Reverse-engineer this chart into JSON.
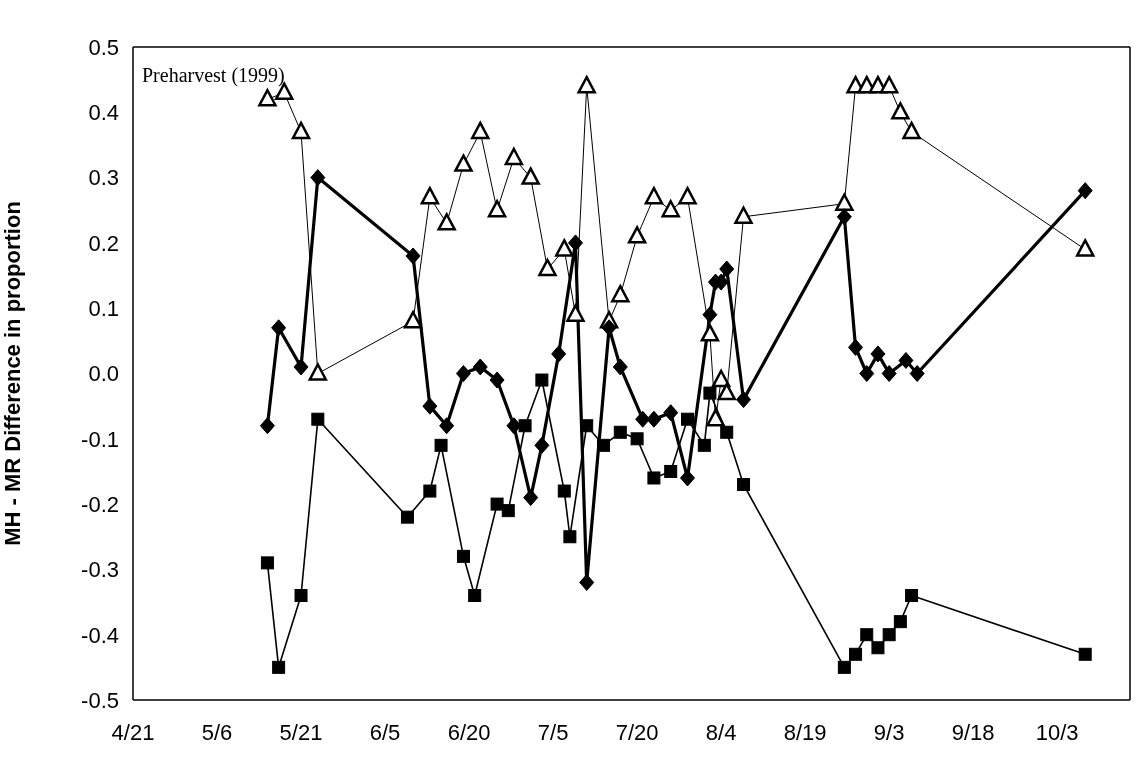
{
  "chart_data": {
    "type": "line",
    "ylabel": "MH - MR Difference in proportion",
    "annotations": [
      "Preharvest (1999)"
    ],
    "xlim": [
      "--04-21",
      "--10-16"
    ],
    "xticks": [
      {
        "value": "--04-21",
        "label": "4/21"
      },
      {
        "value": "--05-06",
        "label": "5/6"
      },
      {
        "value": "--05-21",
        "label": "5/21"
      },
      {
        "value": "--06-05",
        "label": "6/5"
      },
      {
        "value": "--06-20",
        "label": "6/20"
      },
      {
        "value": "--07-05",
        "label": "7/5"
      },
      {
        "value": "--07-20",
        "label": "7/20"
      },
      {
        "value": "--08-04",
        "label": "8/4"
      },
      {
        "value": "--08-19",
        "label": "8/19"
      },
      {
        "value": "--09-03",
        "label": "9/3"
      },
      {
        "value": "--09-18",
        "label": "9/18"
      },
      {
        "value": "--10-03",
        "label": "10/3"
      }
    ],
    "ylim": [
      -0.5,
      0.5
    ],
    "yticks": [
      {
        "value": -0.5,
        "label": "-0.5"
      },
      {
        "value": -0.4,
        "label": "-0.4"
      },
      {
        "value": -0.3,
        "label": "-0.3"
      },
      {
        "value": -0.2,
        "label": "-0.2"
      },
      {
        "value": -0.1,
        "label": "-0.1"
      },
      {
        "value": 0,
        "label": "0.0"
      },
      {
        "value": 0.1,
        "label": "0.1"
      },
      {
        "value": 0.2,
        "label": "0.2"
      },
      {
        "value": 0.3,
        "label": "0.3"
      },
      {
        "value": 0.4,
        "label": "0.4"
      },
      {
        "value": 0.5,
        "label": "0.5"
      }
    ],
    "series": [
      {
        "color": "#000000",
        "marker": "diamond",
        "x": [
          "--05-15",
          "--05-17",
          "--05-21",
          "--05-24",
          "--06-10",
          "--06-13",
          "--06-16",
          "--06-19",
          "--06-22",
          "--06-25",
          "--06-28",
          "--07-01",
          "--07-03",
          "--07-06",
          "--07-09",
          "--07-11",
          "--07-15",
          "--07-17",
          "--07-21",
          "--07-23",
          "--07-26",
          "--07-29",
          "--08-02",
          "--08-03",
          "--08-04",
          "--08-05",
          "--08-08",
          "--08-26",
          "--08-28",
          "--08-30",
          "--09-01",
          "--09-03",
          "--09-06",
          "--09-08",
          "--10-08"
        ],
        "values": [
          -0.08,
          0.07,
          0.01,
          0.3,
          0.18,
          -0.05,
          -0.08,
          0.0,
          0.01,
          -0.01,
          -0.08,
          -0.19,
          -0.11,
          0.03,
          0.2,
          -0.32,
          0.07,
          0.01,
          -0.07,
          -0.07,
          -0.06,
          -0.16,
          0.09,
          0.14,
          0.14,
          0.16,
          -0.04,
          0.24,
          0.04,
          0.0,
          0.03,
          0.0,
          0.02,
          0.0,
          0.28
        ]
      },
      {
        "color": "#000000",
        "marker": "square",
        "x": [
          "--05-15",
          "--05-17",
          "--05-21",
          "--05-24",
          "--06-09",
          "--06-13",
          "--06-15",
          "--06-19",
          "--06-21",
          "--06-25",
          "--06-27",
          "--06-30",
          "--07-03",
          "--07-07",
          "--07-08",
          "--07-11",
          "--07-14",
          "--07-17",
          "--07-20",
          "--07-23",
          "--07-26",
          "--07-29",
          "--08-01",
          "--08-02",
          "--08-05",
          "--08-08",
          "--08-26",
          "--08-28",
          "--08-30",
          "--09-01",
          "--09-03",
          "--09-05",
          "--09-07",
          "--10-08"
        ],
        "values": [
          -0.29,
          -0.45,
          -0.34,
          -0.07,
          -0.22,
          -0.18,
          -0.11,
          -0.28,
          -0.34,
          -0.2,
          -0.21,
          -0.08,
          -0.01,
          -0.18,
          -0.25,
          -0.08,
          -0.11,
          -0.09,
          -0.1,
          -0.16,
          -0.15,
          -0.07,
          -0.11,
          -0.03,
          -0.09,
          -0.17,
          -0.45,
          -0.43,
          -0.4,
          -0.42,
          -0.4,
          -0.38,
          -0.34,
          -0.43
        ]
      },
      {
        "color": "#000000",
        "marker": "triangle",
        "x": [
          "--05-15",
          "--05-18",
          "--05-21",
          "--05-24",
          "--06-10",
          "--06-13",
          "--06-16",
          "--06-19",
          "--06-22",
          "--06-25",
          "--06-28",
          "--07-01",
          "--07-04",
          "--07-07",
          "--07-09",
          "--07-11",
          "--07-15",
          "--07-17",
          "--07-20",
          "--07-23",
          "--07-26",
          "--07-29",
          "--08-02",
          "--08-03",
          "--08-04",
          "--08-05",
          "--08-08",
          "--08-26",
          "--08-28",
          "--08-30",
          "--09-01",
          "--09-03",
          "--09-05",
          "--09-07",
          "--10-08"
        ],
        "values": [
          0.42,
          0.43,
          0.37,
          0.0,
          0.08,
          0.27,
          0.23,
          0.32,
          0.37,
          0.25,
          0.33,
          0.3,
          0.16,
          0.19,
          0.09,
          0.44,
          0.08,
          0.12,
          0.21,
          0.27,
          0.25,
          0.27,
          0.06,
          -0.07,
          -0.01,
          -0.03,
          0.24,
          0.26,
          0.44,
          0.44,
          0.44,
          0.44,
          0.4,
          0.37,
          0.19
        ]
      }
    ]
  }
}
